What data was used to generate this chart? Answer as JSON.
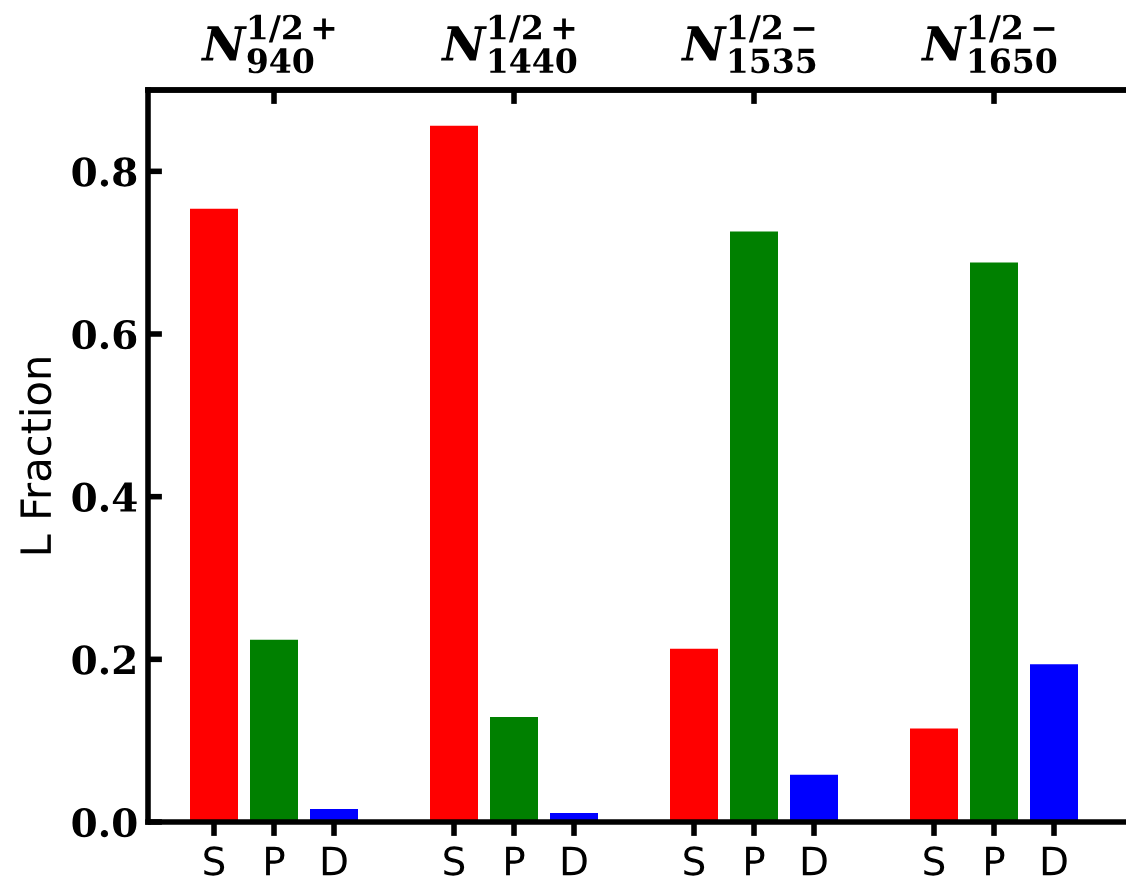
{
  "chart_data": {
    "type": "bar",
    "ylabel": "L Fraction",
    "categories": [
      "S",
      "P",
      "D",
      null,
      "S",
      "P",
      "D",
      null,
      "S",
      "P",
      "D",
      null,
      "S",
      "P",
      "D"
    ],
    "values": [
      0.754,
      0.224,
      0.016,
      null,
      0.856,
      0.129,
      0.011,
      null,
      0.213,
      0.726,
      0.058,
      null,
      0.115,
      0.688,
      0.194
    ],
    "colors": [
      "#ff0000",
      "#008000",
      "#0000ff",
      null,
      "#ff0000",
      "#008000",
      "#0000ff",
      null,
      "#ff0000",
      "#008000",
      "#0000ff",
      null,
      "#ff0000",
      "#008000",
      "#0000ff"
    ],
    "ylim": [
      0,
      0.9
    ],
    "yticks": [
      {
        "value": 0,
        "label": "0.0"
      },
      0.2,
      0.4,
      0.6,
      0.8
    ],
    "annotations": [
      "N$^{1/2+}$$_{940}$",
      "N$^{1/2+}$$_{1440}$",
      "N$^{1/2−}$$_{1535}$",
      "N$^{1/2−}$$_{1650}$"
    ],
    "grid": false,
    "legend": false
  }
}
